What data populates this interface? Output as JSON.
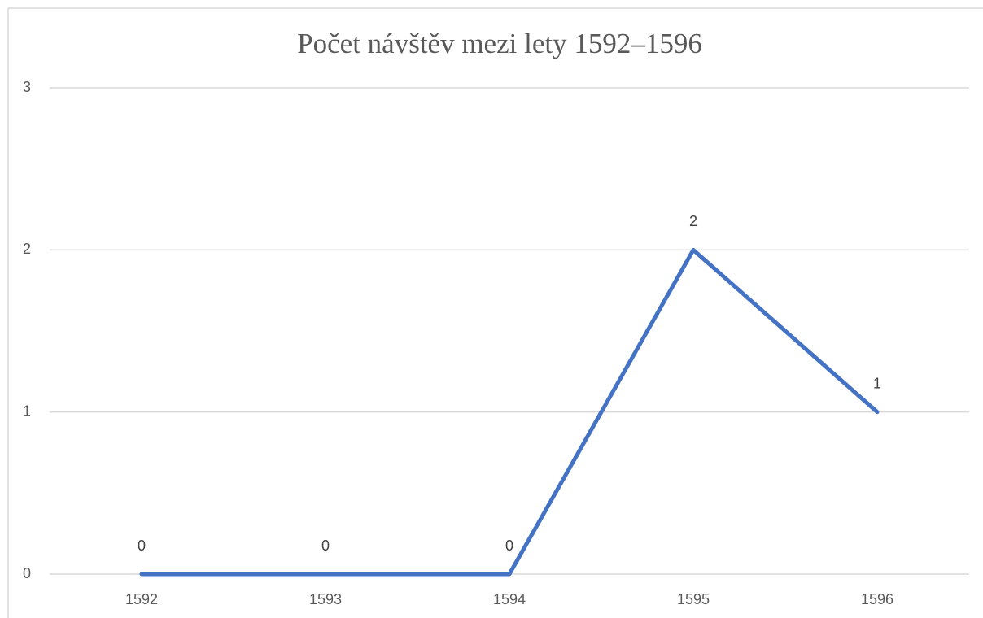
{
  "chart_data": {
    "type": "line",
    "title": "Počet návštěv mezi lety 1592–1596",
    "categories": [
      "1592",
      "1593",
      "1594",
      "1595",
      "1596"
    ],
    "series": [
      {
        "name": "Počet návštěv",
        "color": "#4472c4",
        "values": [
          0,
          0,
          0,
          2,
          1
        ]
      }
    ],
    "ylim": [
      0,
      3
    ],
    "yticks": [
      0,
      1,
      2,
      3
    ],
    "grid": true,
    "data_labels": true,
    "legend": false
  }
}
